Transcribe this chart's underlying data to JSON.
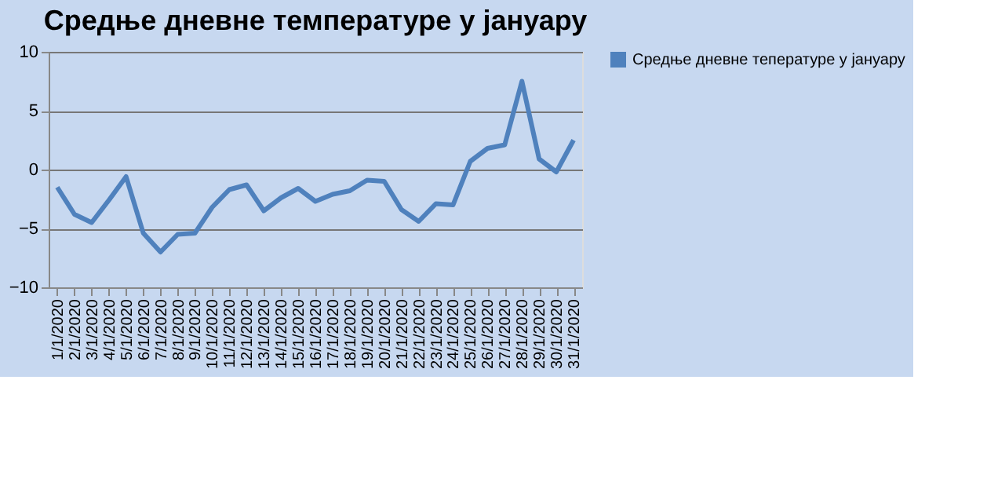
{
  "chart_data": {
    "type": "line",
    "title": "Средње дневне температуре у јануару",
    "categories": [
      "1/1/2020",
      "2/1/2020",
      "3/1/2020",
      "4/1/2020",
      "5/1/2020",
      "6/1/2020",
      "7/1/2020",
      "8/1/2020",
      "9/1/2020",
      "10/1/2020",
      "11/1/2020",
      "12/1/2020",
      "13/1/2020",
      "14/1/2020",
      "15/1/2020",
      "16/1/2020",
      "17/1/2020",
      "18/1/2020",
      "19/1/2020",
      "20/1/2020",
      "21/1/2020",
      "22/1/2020",
      "23/1/2020",
      "24/1/2020",
      "25/1/2020",
      "26/1/2020",
      "27/1/2020",
      "28/1/2020",
      "29/1/2020",
      "30/1/2020",
      "31/1/2020"
    ],
    "series": [
      {
        "name": "Средње дневне тепературе у јануару",
        "color": "#4f81bd",
        "values": [
          -1.5,
          -3.8,
          -4.5,
          -2.6,
          -0.6,
          -5.4,
          -7,
          -5.5,
          -5.4,
          -3.2,
          -1.7,
          -1.3,
          -3.5,
          -2.4,
          -1.6,
          -2.7,
          -2.1,
          -1.8,
          -0.9,
          -1,
          -3.4,
          -4.4,
          -2.9,
          -3,
          0.7,
          1.8,
          2.1,
          7.5,
          0.9,
          -0.2,
          2.5
        ]
      }
    ],
    "ylim": [
      -10,
      10
    ],
    "yticks": [
      -10,
      -5,
      0,
      5,
      10
    ],
    "grid": "y",
    "legend": "right",
    "marker": "none",
    "line_style": "solid"
  }
}
